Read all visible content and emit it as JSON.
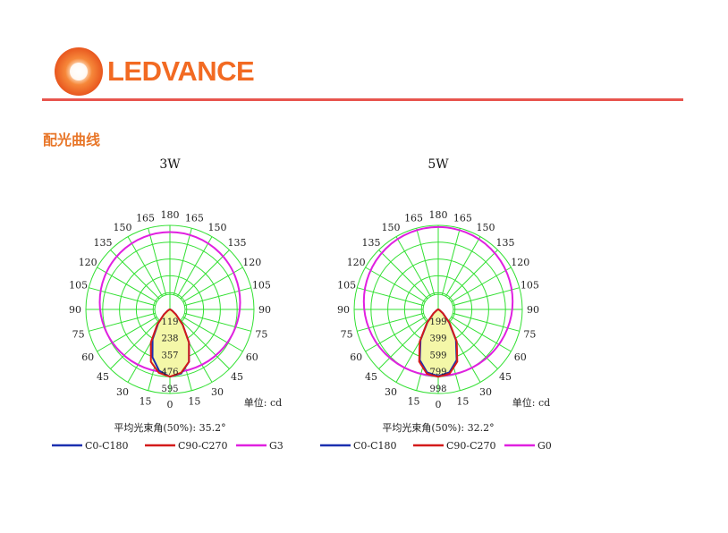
{
  "header": {
    "brand": "LEDVANCE",
    "section_title": "配光曲线"
  },
  "colors": {
    "brand": "#f26a22",
    "rule": "#e8554e",
    "grid": "#32e032",
    "c0": "#1a2fb0",
    "c90": "#d41a1a",
    "g": "#e020e0",
    "fill": "#f4f7a8"
  },
  "chart_data": [
    {
      "type": "polar",
      "title": "3W",
      "angle_ticks": [
        {
          "a": 180,
          "l": "180"
        },
        {
          "a": 165,
          "l": "165"
        },
        {
          "a": 150,
          "l": "150"
        },
        {
          "a": 135,
          "l": "135"
        },
        {
          "a": 120,
          "l": "120"
        },
        {
          "a": 105,
          "l": "105"
        },
        {
          "a": 90,
          "l": "90"
        },
        {
          "a": 75,
          "l": "75"
        },
        {
          "a": 60,
          "l": "60"
        },
        {
          "a": 45,
          "l": "45"
        },
        {
          "a": 30,
          "l": "30"
        },
        {
          "a": 15,
          "l": "15"
        },
        {
          "a": 0,
          "l": "0"
        }
      ],
      "radial_max": 595,
      "radial_ticks": [
        "119",
        "238",
        "357",
        "476",
        "595"
      ],
      "unit_label": "单位: cd",
      "beam_angle_label": "平均光束角(50%): 35.2°",
      "series": [
        {
          "name": "C0-C180",
          "points": [
            [
              0,
              476
            ],
            [
              10,
              460
            ],
            [
              20,
              395
            ],
            [
              30,
              270
            ],
            [
              40,
              140
            ],
            [
              50,
              55
            ],
            [
              60,
              18
            ],
            [
              75,
              4
            ],
            [
              90,
              0
            ],
            [
              -10,
              440
            ],
            [
              -20,
              360
            ],
            [
              -30,
              245
            ],
            [
              -40,
              130
            ],
            [
              -50,
              55
            ],
            [
              -60,
              18
            ],
            [
              -75,
              4
            ],
            [
              -90,
              0
            ]
          ]
        },
        {
          "name": "C90-C270",
          "points": [
            [
              0,
              476
            ],
            [
              10,
              455
            ],
            [
              20,
              395
            ],
            [
              30,
              270
            ],
            [
              40,
              140
            ],
            [
              50,
              55
            ],
            [
              60,
              18
            ],
            [
              75,
              4
            ],
            [
              90,
              0
            ],
            [
              -10,
              455
            ],
            [
              -20,
              395
            ],
            [
              -30,
              270
            ],
            [
              -40,
              140
            ],
            [
              -50,
              55
            ],
            [
              -60,
              18
            ],
            [
              -75,
              4
            ],
            [
              -90,
              0
            ]
          ]
        },
        {
          "name": "G3",
          "circle_ratio": 0.835,
          "center_y_ratio": 0.085
        }
      ]
    },
    {
      "type": "polar",
      "title": "5W",
      "angle_ticks": [
        {
          "a": 180,
          "l": "180"
        },
        {
          "a": 165,
          "l": "165"
        },
        {
          "a": 150,
          "l": "150"
        },
        {
          "a": 135,
          "l": "135"
        },
        {
          "a": 120,
          "l": "120"
        },
        {
          "a": 105,
          "l": "105"
        },
        {
          "a": 90,
          "l": "90"
        },
        {
          "a": 75,
          "l": "75"
        },
        {
          "a": 60,
          "l": "60"
        },
        {
          "a": 45,
          "l": "45"
        },
        {
          "a": 30,
          "l": "30"
        },
        {
          "a": 15,
          "l": "15"
        },
        {
          "a": 0,
          "l": "0"
        }
      ],
      "radial_max": 998,
      "radial_ticks": [
        "199",
        "399",
        "599",
        "799",
        "998"
      ],
      "unit_label": "单位: cd",
      "beam_angle_label": "平均光束角(50%): 32.2°",
      "series": [
        {
          "name": "C0-C180",
          "points": [
            [
              0,
              790
            ],
            [
              10,
              760
            ],
            [
              20,
              640
            ],
            [
              30,
              420
            ],
            [
              40,
              200
            ],
            [
              50,
              70
            ],
            [
              60,
              20
            ],
            [
              75,
              4
            ],
            [
              90,
              0
            ],
            [
              -10,
              760
            ],
            [
              -20,
              640
            ],
            [
              -30,
              420
            ],
            [
              -40,
              200
            ],
            [
              -50,
              70
            ],
            [
              -60,
              20
            ],
            [
              -75,
              4
            ],
            [
              -90,
              0
            ]
          ]
        },
        {
          "name": "C90-C270",
          "points": [
            [
              0,
              800
            ],
            [
              10,
              775
            ],
            [
              20,
              660
            ],
            [
              30,
              440
            ],
            [
              40,
              210
            ],
            [
              50,
              75
            ],
            [
              60,
              22
            ],
            [
              75,
              4
            ],
            [
              90,
              0
            ],
            [
              -10,
              775
            ],
            [
              -20,
              660
            ],
            [
              -30,
              440
            ],
            [
              -40,
              210
            ],
            [
              -50,
              75
            ],
            [
              -60,
              22
            ],
            [
              -75,
              4
            ],
            [
              -90,
              0
            ]
          ]
        },
        {
          "name": "G0",
          "circle_ratio": 0.885,
          "center_y_ratio": 0.095
        }
      ]
    }
  ]
}
